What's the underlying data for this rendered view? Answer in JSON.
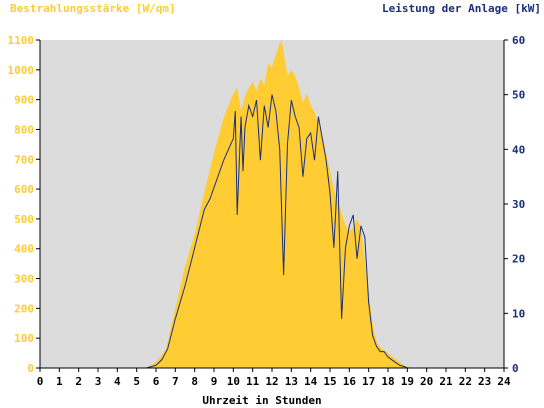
{
  "chart_data": {
    "type": "area",
    "left_axis_title": "Bestrahlungsstärke [W/qm]",
    "right_axis_title": "Leistung der Anlage [kW]",
    "xlabel": "Uhrzeit in Stunden",
    "xlim": [
      0,
      24
    ],
    "ylim_left": [
      0,
      1100
    ],
    "ylim_right": [
      0,
      60
    ],
    "x_ticks": [
      "0",
      "1",
      "2",
      "3",
      "4",
      "5",
      "6",
      "7",
      "8",
      "9",
      "10",
      "11",
      "12",
      "13",
      "14",
      "15",
      "16",
      "17",
      "18",
      "19",
      "20",
      "21",
      "22",
      "23",
      "24"
    ],
    "y_ticks_left": [
      "0",
      "100",
      "200",
      "300",
      "400",
      "500",
      "600",
      "700",
      "800",
      "900",
      "1000",
      "1100"
    ],
    "y_ticks_right": [
      "0",
      "10",
      "20",
      "30",
      "40",
      "50",
      "60"
    ],
    "grid": false,
    "colors": {
      "irradiance": "#ffcc33",
      "power": "#1a2f7a",
      "plot_background": "#dcdcdc",
      "left_axis_text": "#ffcc33",
      "right_axis_text": "#1a2f7a"
    },
    "series": [
      {
        "axis": "left",
        "style": "filled-area",
        "x": [
          5.5,
          6.0,
          6.5,
          7.0,
          7.5,
          8.0,
          8.5,
          9.0,
          9.5,
          10.0,
          10.2,
          10.4,
          10.6,
          10.8,
          11.0,
          11.2,
          11.4,
          11.6,
          11.8,
          12.0,
          12.2,
          12.4,
          12.5,
          12.6,
          12.8,
          13.0,
          13.2,
          13.4,
          13.6,
          13.8,
          14.0,
          14.2,
          14.4,
          14.6,
          14.8,
          15.0,
          15.2,
          15.4,
          15.6,
          15.8,
          16.0,
          16.2,
          16.4,
          16.6,
          16.8,
          17.0,
          17.2,
          17.4,
          17.6,
          17.8,
          18.0,
          18.2,
          18.4,
          18.6,
          18.8,
          19.0,
          19.2
        ],
        "values": [
          0,
          20,
          60,
          200,
          340,
          450,
          590,
          720,
          840,
          920,
          940,
          860,
          910,
          940,
          960,
          930,
          970,
          950,
          1020,
          1010,
          1050,
          1090,
          1100,
          1060,
          980,
          1000,
          980,
          940,
          890,
          920,
          880,
          860,
          820,
          780,
          720,
          660,
          600,
          560,
          520,
          480,
          460,
          470,
          500,
          470,
          360,
          250,
          150,
          90,
          70,
          60,
          50,
          40,
          30,
          20,
          10,
          5,
          0
        ]
      },
      {
        "axis": "right",
        "style": "line",
        "x": [
          5.5,
          6.0,
          6.3,
          6.6,
          7.0,
          7.5,
          8.0,
          8.5,
          8.8,
          9.0,
          9.5,
          10.0,
          10.1,
          10.2,
          10.4,
          10.5,
          10.6,
          10.8,
          11.0,
          11.2,
          11.4,
          11.6,
          11.8,
          12.0,
          12.2,
          12.4,
          12.6,
          12.8,
          13.0,
          13.2,
          13.4,
          13.6,
          13.8,
          14.0,
          14.2,
          14.4,
          14.6,
          14.8,
          15.0,
          15.2,
          15.4,
          15.6,
          15.8,
          16.0,
          16.2,
          16.4,
          16.6,
          16.8,
          17.0,
          17.2,
          17.4,
          17.6,
          17.8,
          18.0,
          18.2,
          18.4,
          18.6,
          18.8,
          19.0,
          19.2
        ],
        "values": [
          0,
          0.5,
          1.5,
          3.5,
          9,
          15,
          22,
          29,
          31,
          33,
          38,
          42,
          47,
          28,
          46,
          36,
          44,
          48,
          46,
          49,
          38,
          48,
          44,
          50,
          47,
          40,
          17,
          41,
          49,
          46,
          44,
          35,
          42,
          43,
          38,
          46,
          42,
          38,
          32,
          22,
          36,
          9,
          22,
          26,
          28,
          20,
          26,
          24,
          12,
          6,
          4,
          3,
          3,
          2,
          1.5,
          1,
          0.5,
          0.3,
          0,
          0
        ]
      }
    ]
  }
}
